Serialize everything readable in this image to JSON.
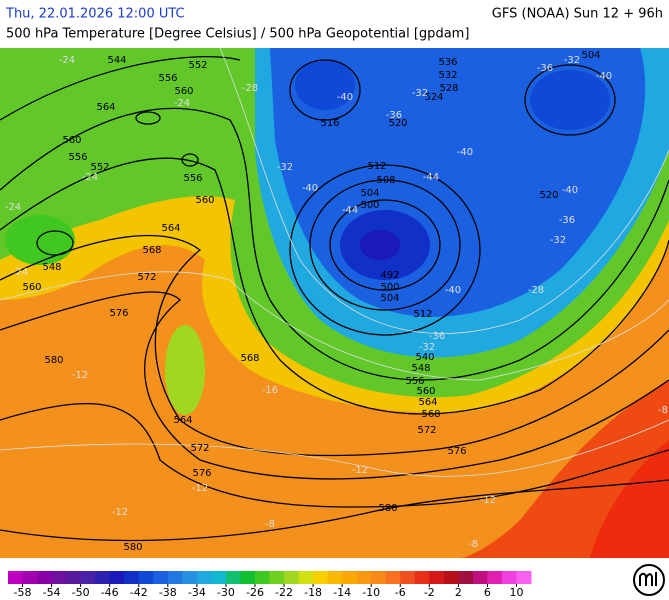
{
  "header": {
    "left": "Thu, 22.01.2026 12:00 UTC",
    "right": "GFS (NOAA) Sun 12 + 96h",
    "subtitle": "500 hPa Temperature [Degree Celsius] / 500 hPa Geopotential [gpdam]"
  },
  "colorbar": {
    "lim": [
      -60,
      12
    ],
    "colors": [
      "#c000c0",
      "#a000b0",
      "#8a00a8",
      "#7010a0",
      "#5a1aa0",
      "#4a22a8",
      "#3020b0",
      "#1a1ab8",
      "#1030c8",
      "#1048d8",
      "#1a60e0",
      "#2078e0",
      "#2890e0",
      "#20a8e0",
      "#10b8d0",
      "#10c070",
      "#10c030",
      "#40c820",
      "#70d020",
      "#a0d820",
      "#d0e010",
      "#f8d000",
      "#f8b800",
      "#f8a800",
      "#f89810",
      "#f88818",
      "#f87020",
      "#f05020",
      "#e83018",
      "#d81818",
      "#b81018",
      "#a01040",
      "#c01080",
      "#e020b0",
      "#f040e0",
      "#f860f0"
    ],
    "ticks": [
      -58,
      -54,
      -50,
      -46,
      -42,
      -38,
      -34,
      -30,
      -26,
      -22,
      -18,
      -14,
      -10,
      -6,
      -2,
      2,
      6,
      10
    ]
  },
  "geopotential_labels": [
    544,
    552,
    556,
    560,
    564,
    560,
    556,
    552,
    556,
    560,
    564,
    568,
    572,
    576,
    580,
    548,
    560,
    568,
    564,
    572,
    576,
    580,
    580,
    516,
    520,
    524,
    528,
    532,
    536,
    504,
    512,
    508,
    504,
    500,
    492,
    500,
    504,
    512,
    540,
    548,
    556,
    560,
    564,
    568,
    572,
    576,
    520
  ],
  "temperature_labels": [
    -24,
    -24,
    -28,
    -32,
    -40,
    -44,
    -40,
    -36,
    -32,
    -44,
    -40,
    -36,
    -32,
    -40,
    -40,
    -36,
    -32,
    -28,
    -40,
    -36,
    -32,
    -24,
    -24,
    -24,
    -16,
    -12,
    -12,
    -12,
    -8,
    -8,
    -8,
    -12,
    -12
  ]
}
